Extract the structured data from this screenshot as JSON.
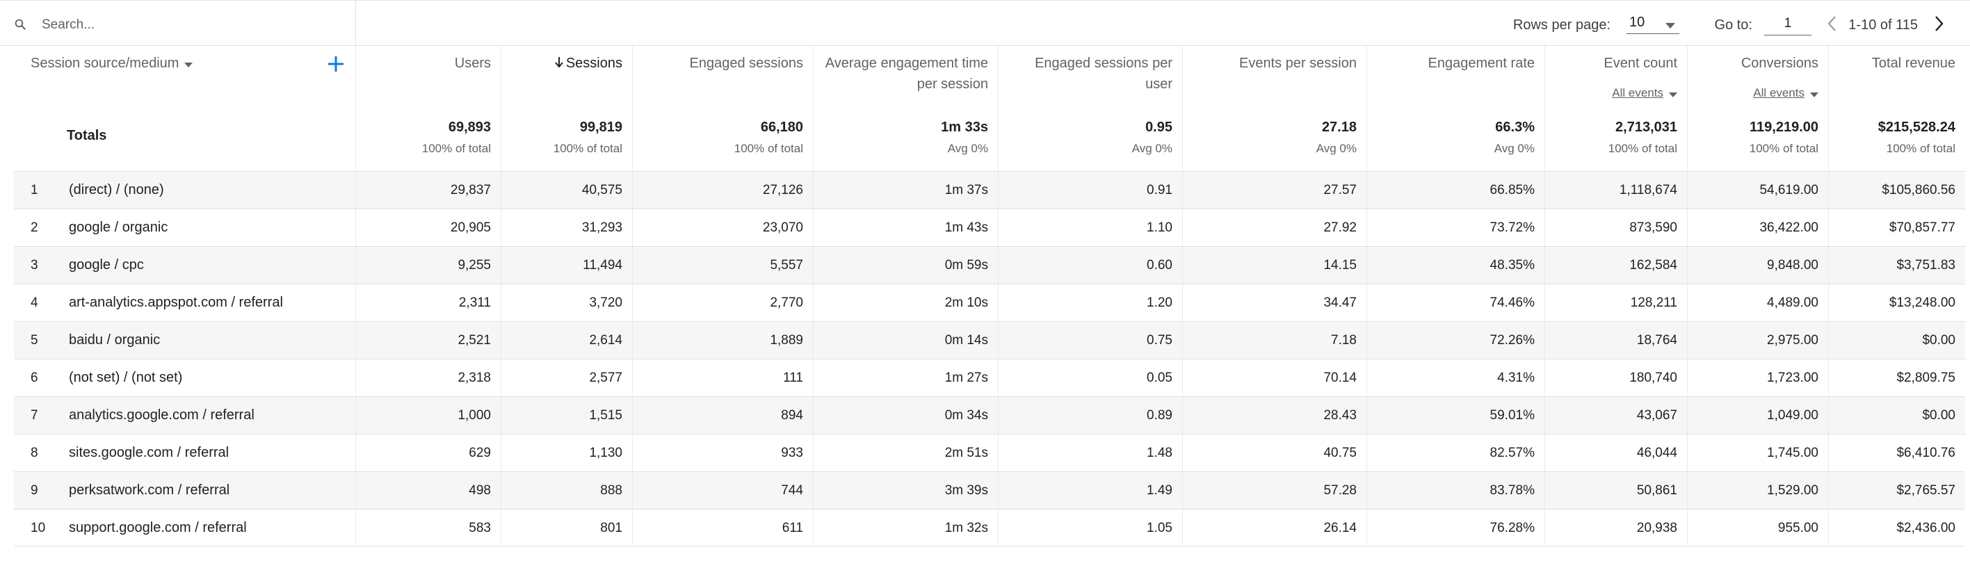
{
  "search": {
    "placeholder": "Search..."
  },
  "pagination": {
    "rows_per_page_label": "Rows per page:",
    "rows_per_page_value": "10",
    "goto_label": "Go to:",
    "goto_value": "1",
    "range": "1-10 of 115"
  },
  "table": {
    "dimension_header": "Session source/medium",
    "totals_label": "Totals",
    "columns": [
      {
        "title": "Users",
        "sub": "",
        "total": "69,893",
        "total_sub": "100% of total"
      },
      {
        "title": "Sessions",
        "sub": "",
        "total": "99,819",
        "total_sub": "100% of total",
        "sorted": "desc"
      },
      {
        "title": "Engaged sessions",
        "sub": "",
        "total": "66,180",
        "total_sub": "100% of total"
      },
      {
        "title": "Average engagement time per session",
        "sub": "",
        "total": "1m 33s",
        "total_sub": "Avg 0%"
      },
      {
        "title": "Engaged sessions per user",
        "sub": "",
        "total": "0.95",
        "total_sub": "Avg 0%"
      },
      {
        "title": "Events per session",
        "sub": "",
        "total": "27.18",
        "total_sub": "Avg 0%"
      },
      {
        "title": "Engagement rate",
        "sub": "",
        "total": "66.3%",
        "total_sub": "Avg 0%"
      },
      {
        "title": "Event count",
        "sub": "All events",
        "total": "2,713,031",
        "total_sub": "100% of total"
      },
      {
        "title": "Conversions",
        "sub": "All events",
        "total": "119,219.00",
        "total_sub": "100% of total"
      },
      {
        "title": "Total revenue",
        "sub": "",
        "total": "$215,528.24",
        "total_sub": "100% of total"
      }
    ],
    "rows": [
      {
        "index": "1",
        "source": "(direct) / (none)",
        "values": [
          "29,837",
          "40,575",
          "27,126",
          "1m 37s",
          "0.91",
          "27.57",
          "66.85%",
          "1,118,674",
          "54,619.00",
          "$105,860.56"
        ]
      },
      {
        "index": "2",
        "source": "google / organic",
        "values": [
          "20,905",
          "31,293",
          "23,070",
          "1m 43s",
          "1.10",
          "27.92",
          "73.72%",
          "873,590",
          "36,422.00",
          "$70,857.77"
        ]
      },
      {
        "index": "3",
        "source": "google / cpc",
        "values": [
          "9,255",
          "11,494",
          "5,557",
          "0m 59s",
          "0.60",
          "14.15",
          "48.35%",
          "162,584",
          "9,848.00",
          "$3,751.83"
        ]
      },
      {
        "index": "4",
        "source": "art-analytics.appspot.com / referral",
        "values": [
          "2,311",
          "3,720",
          "2,770",
          "2m 10s",
          "1.20",
          "34.47",
          "74.46%",
          "128,211",
          "4,489.00",
          "$13,248.00"
        ]
      },
      {
        "index": "5",
        "source": "baidu / organic",
        "values": [
          "2,521",
          "2,614",
          "1,889",
          "0m 14s",
          "0.75",
          "7.18",
          "72.26%",
          "18,764",
          "2,975.00",
          "$0.00"
        ]
      },
      {
        "index": "6",
        "source": "(not set) / (not set)",
        "values": [
          "2,318",
          "2,577",
          "111",
          "1m 27s",
          "0.05",
          "70.14",
          "4.31%",
          "180,740",
          "1,723.00",
          "$2,809.75"
        ]
      },
      {
        "index": "7",
        "source": "analytics.google.com / referral",
        "values": [
          "1,000",
          "1,515",
          "894",
          "0m 34s",
          "0.89",
          "28.43",
          "59.01%",
          "43,067",
          "1,049.00",
          "$0.00"
        ]
      },
      {
        "index": "8",
        "source": "sites.google.com / referral",
        "values": [
          "629",
          "1,130",
          "933",
          "2m 51s",
          "1.48",
          "40.75",
          "82.57%",
          "46,044",
          "1,745.00",
          "$6,410.76"
        ]
      },
      {
        "index": "9",
        "source": "perksatwork.com / referral",
        "values": [
          "498",
          "888",
          "744",
          "3m 39s",
          "1.49",
          "57.28",
          "83.78%",
          "50,861",
          "1,529.00",
          "$2,765.57"
        ]
      },
      {
        "index": "10",
        "source": "support.google.com / referral",
        "values": [
          "583",
          "801",
          "611",
          "1m 32s",
          "1.05",
          "26.14",
          "76.28%",
          "20,938",
          "955.00",
          "$2,436.00"
        ]
      }
    ]
  },
  "colors": {
    "accent": "#1a73e8",
    "row_alt": "#f6f6f6",
    "border": "#e0e0e0",
    "muted_text": "#5f6368"
  },
  "icons": {
    "search": "search-icon",
    "add": "add-icon",
    "prev": "chevron-left-icon",
    "next": "chevron-right-icon",
    "dropdown": "caret-down-icon",
    "sort": "arrow-down-icon"
  }
}
